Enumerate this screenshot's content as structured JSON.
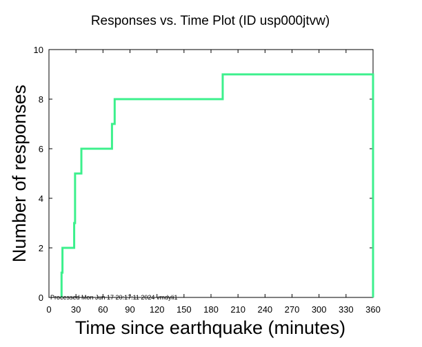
{
  "chart_data": {
    "type": "line",
    "title": "Responses vs. Time Plot (ID usp000jtvw)",
    "xlabel": "Time since earthquake (minutes)",
    "ylabel": "Number of responses",
    "xlim": [
      0,
      360
    ],
    "ylim": [
      0,
      10
    ],
    "x_ticks": [
      0,
      30,
      60,
      90,
      120,
      150,
      180,
      210,
      240,
      270,
      300,
      330,
      360
    ],
    "y_ticks": [
      0,
      2,
      4,
      6,
      8,
      10
    ],
    "grid": false,
    "line_color": "#3cf08c",
    "series": [
      {
        "name": "responses",
        "step": true,
        "x": [
          14,
          15,
          16,
          28,
          29,
          36,
          70,
          71,
          73,
          193,
          360,
          360
        ],
        "y": [
          1,
          2,
          2,
          3,
          5,
          6,
          7,
          7,
          8,
          9,
          9,
          0
        ]
      }
    ],
    "footnote": "Processed Mon Jun 17 20:17:11 2024 vmdyli1"
  }
}
